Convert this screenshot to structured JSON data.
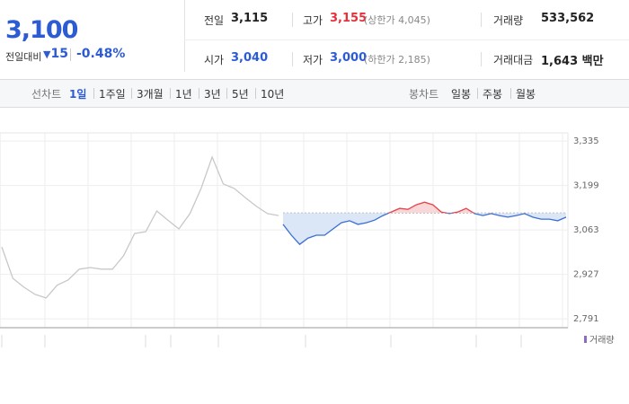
{
  "header": {
    "price": "3,100",
    "change_label": "전일대비",
    "change": "15",
    "change_rate": "-0.48%",
    "stats": [
      {
        "label": "전일",
        "value": "3,115"
      },
      {
        "label": "고가",
        "value": "3,155",
        "note": "(상한가 4,045)"
      },
      {
        "label": "거래량",
        "value": "533,562"
      },
      {
        "label": "시가",
        "value": "3,040"
      },
      {
        "label": "저가",
        "value": "3,000",
        "note": "(하한가 2,185)"
      },
      {
        "label": "거래대금",
        "value": "1,643 백만"
      }
    ]
  },
  "tabs": {
    "line_label": "선차트",
    "line": [
      "1일",
      "1주일",
      "3개월",
      "1년",
      "3년",
      "5년",
      "10년"
    ],
    "candle_label": "봉차트",
    "candle": [
      "일봉",
      "주봉",
      "월봉"
    ]
  },
  "chart_data": {
    "type": "line",
    "volume_legend": "거래량",
    "reference_line": 3115,
    "ylim": [
      2764,
      3360
    ],
    "yticks": [
      {
        "value": 3335,
        "label": "3,335"
      },
      {
        "value": 3199,
        "label": "3,199"
      },
      {
        "value": 3063,
        "label": "3,063"
      },
      {
        "value": 2927,
        "label": "2,927"
      },
      {
        "value": 2791,
        "label": "2,791"
      }
    ],
    "series": [
      {
        "color": "#c8c8c8",
        "values": [
          3011,
          2915,
          2888,
          2866,
          2855,
          2894,
          2910,
          2943,
          2948,
          2943,
          2943,
          2984,
          3052,
          3058,
          3121,
          3093,
          3066,
          3113,
          3190,
          3286,
          3204,
          3190,
          3162,
          3135,
          3113,
          3107
        ]
      },
      {
        "color": "#3b6fd4",
        "color_up": "#e8424a",
        "values": [
          3080,
          3047,
          3019,
          3038,
          3047,
          3047,
          3066,
          3085,
          3091,
          3080,
          3085,
          3093,
          3107,
          3118,
          3129,
          3126,
          3140,
          3148,
          3140,
          3118,
          3113,
          3118,
          3129,
          3113,
          3107,
          3113,
          3107,
          3102,
          3107,
          3113,
          3102,
          3096,
          3096,
          3091,
          3102
        ]
      }
    ]
  }
}
